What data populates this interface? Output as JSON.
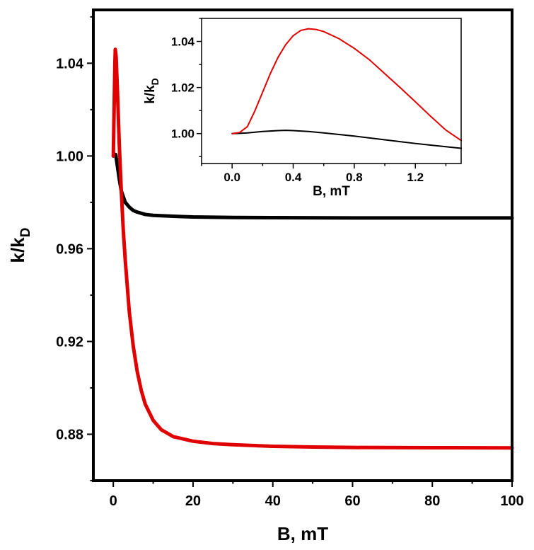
{
  "chart_data": [
    {
      "type": "line",
      "xlabel": "B, mT",
      "ylabel_main": "k/k",
      "ylabel_sub": "D",
      "xlim": [
        -5,
        100
      ],
      "ylim": [
        0.86,
        1.063
      ],
      "x_ticks": [
        0,
        20,
        40,
        60,
        80,
        100
      ],
      "x_tick_labels": [
        "0",
        "20",
        "40",
        "60",
        "80",
        "100"
      ],
      "y_ticks": [
        0.88,
        0.92,
        0.96,
        1.0,
        1.04
      ],
      "y_tick_labels": [
        "0.88",
        "0.92",
        "0.96",
        "1.00",
        "1.04"
      ],
      "grid": false,
      "series": [
        {
          "color": "#000000",
          "x": [
            0,
            0.2,
            0.4,
            0.6,
            1,
            1.5,
            2,
            3,
            4,
            5,
            6,
            8,
            10,
            15,
            20,
            30,
            40,
            60,
            80,
            100
          ],
          "y": [
            1.0,
            1.0004,
            1.0007,
            1.0006,
            0.996,
            0.99,
            0.985,
            0.98,
            0.978,
            0.9765,
            0.9758,
            0.9748,
            0.9744,
            0.974,
            0.9737,
            0.9735,
            0.9734,
            0.9733,
            0.9733,
            0.9733
          ]
        },
        {
          "color": "#e00000",
          "x": [
            0,
            0.2,
            0.4,
            0.5,
            0.7,
            1.0,
            1.5,
            2,
            2.5,
            3,
            4,
            5,
            6,
            7,
            8,
            10,
            12,
            15,
            20,
            25,
            30,
            40,
            50,
            60,
            80,
            100
          ],
          "y": [
            1.0,
            1.02,
            1.04,
            1.046,
            1.043,
            1.03,
            1.005,
            0.985,
            0.968,
            0.955,
            0.933,
            0.918,
            0.907,
            0.899,
            0.893,
            0.886,
            0.882,
            0.879,
            0.877,
            0.876,
            0.8755,
            0.8748,
            0.8745,
            0.8743,
            0.8742,
            0.8741
          ]
        }
      ]
    },
    {
      "type": "line",
      "xlabel": "B, mT",
      "ylabel_main": "k/k",
      "ylabel_sub": "D",
      "xlim": [
        -0.2,
        1.5
      ],
      "ylim": [
        0.987,
        1.05
      ],
      "x_ticks": [
        0.0,
        0.4,
        0.8,
        1.2
      ],
      "x_tick_labels": [
        "0.0",
        "0.4",
        "0.8",
        "1.2"
      ],
      "y_ticks": [
        1.0,
        1.02,
        1.04
      ],
      "y_tick_labels": [
        "1.00",
        "1.02",
        "1.04"
      ],
      "grid": false,
      "series": [
        {
          "color": "#000000",
          "x": [
            0,
            0.05,
            0.1,
            0.2,
            0.3,
            0.35,
            0.4,
            0.5,
            0.6,
            0.7,
            0.8,
            0.9,
            1.0,
            1.1,
            1.2,
            1.3,
            1.4,
            1.5
          ],
          "y": [
            1.0,
            1.0001,
            1.0003,
            1.0009,
            1.0013,
            1.0014,
            1.0013,
            1.0009,
            1.0003,
            0.9996,
            0.9989,
            0.9981,
            0.9973,
            0.9965,
            0.9957,
            0.995,
            0.9943,
            0.9936
          ]
        },
        {
          "color": "#e00000",
          "x": [
            0,
            0.05,
            0.1,
            0.15,
            0.2,
            0.25,
            0.3,
            0.35,
            0.4,
            0.45,
            0.5,
            0.55,
            0.6,
            0.7,
            0.8,
            0.9,
            1.0,
            1.1,
            1.2,
            1.3,
            1.4,
            1.5
          ],
          "y": [
            1.0,
            1.0005,
            1.003,
            1.01,
            1.018,
            1.026,
            1.033,
            1.0385,
            1.0425,
            1.0448,
            1.0455,
            1.0452,
            1.0443,
            1.0412,
            1.037,
            1.032,
            1.026,
            1.02,
            1.0138,
            1.0075,
            1.0015,
            0.997
          ]
        }
      ]
    }
  ]
}
